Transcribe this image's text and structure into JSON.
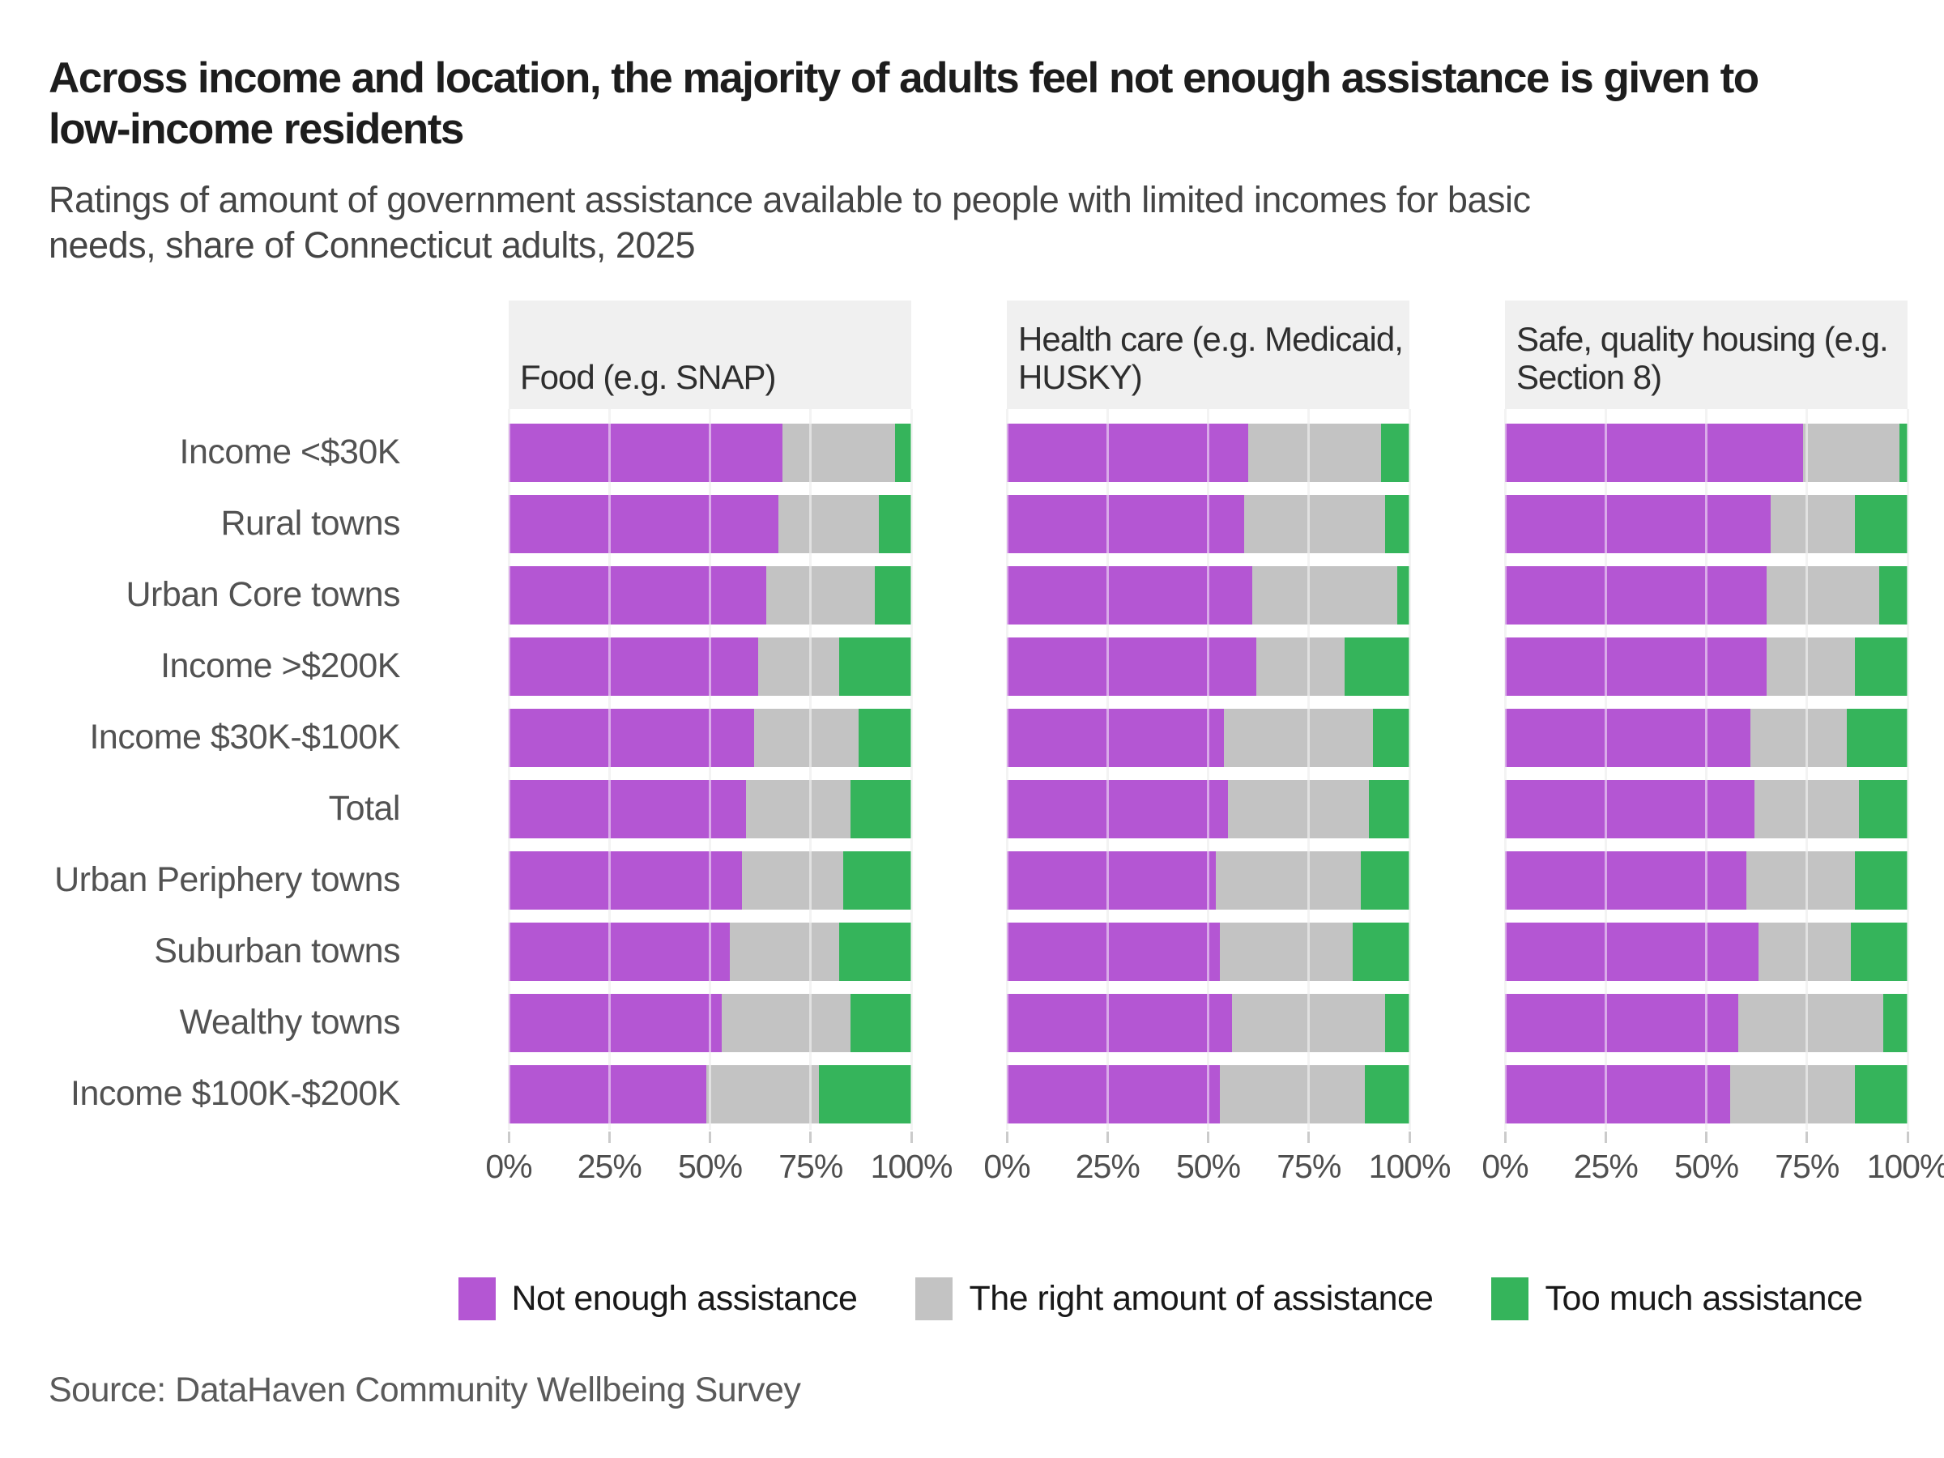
{
  "title": {
    "full": "Across income and location, the majority of adults feel not enough assistance is given to low-income residents",
    "lines": [
      "Across income and location, the majority of adults feel not enough assistance is given to",
      "low-income residents"
    ]
  },
  "subtitle": {
    "full": "Ratings of amount of government assistance available to people with limited incomes for basic needs, share of Connecticut adults, 2025",
    "lines": [
      "Ratings of amount of government assistance available to people with limited incomes for basic",
      "needs, share of Connecticut adults, 2025"
    ]
  },
  "source": "Source: DataHaven Community Wellbeing Survey",
  "colors": {
    "not_enough": "#b456d3",
    "right_amount": "#c3c3c3",
    "too_much": "#35b45b",
    "panel_header_bg": "#f0f0f0",
    "gridline": "#e7e7e7"
  },
  "legend": [
    {
      "label": "Not enough assistance",
      "color": "#b456d3"
    },
    {
      "label": "The right amount of assistance",
      "color": "#c3c3c3"
    },
    {
      "label": "Too much assistance",
      "color": "#35b45b"
    }
  ],
  "chart_data": {
    "type": "bar",
    "orientation": "horizontal",
    "stacked": true,
    "unit": "percent",
    "xlim": [
      0,
      100
    ],
    "x_ticks": [
      "0%",
      "25%",
      "50%",
      "75%",
      "100%"
    ],
    "x_tick_values": [
      0,
      25,
      50,
      75,
      100
    ],
    "grid": true,
    "legend_position": "bottom",
    "categories": [
      "Income <$30K",
      "Rural towns",
      "Urban Core towns",
      "Income >$200K",
      "Income $30K-$100K",
      "Total",
      "Urban Periphery towns",
      "Suburban towns",
      "Wealthy towns",
      "Income $100K-$200K"
    ],
    "series_names": [
      "Not enough assistance",
      "The right amount of assistance",
      "Too much assistance"
    ],
    "panels": [
      {
        "title": "Food (e.g. SNAP)",
        "title_lines": [
          "Food (e.g. SNAP)"
        ],
        "series": [
          {
            "name": "Not enough assistance",
            "values": [
              68,
              67,
              64,
              62,
              61,
              59,
              58,
              55,
              53,
              49
            ]
          },
          {
            "name": "The right amount of assistance",
            "values": [
              28,
              25,
              27,
              20,
              26,
              26,
              25,
              27,
              32,
              28
            ]
          },
          {
            "name": "Too much assistance",
            "values": [
              4,
              8,
              9,
              18,
              13,
              15,
              17,
              18,
              15,
              23
            ]
          }
        ]
      },
      {
        "title": "Health care (e.g. Medicaid, HUSKY)",
        "title_lines": [
          "Health care (e.g. Medicaid,",
          "HUSKY)"
        ],
        "series": [
          {
            "name": "Not enough assistance",
            "values": [
              60,
              59,
              61,
              62,
              54,
              55,
              52,
              53,
              56,
              53
            ]
          },
          {
            "name": "The right amount of assistance",
            "values": [
              33,
              35,
              36,
              22,
              37,
              35,
              36,
              33,
              38,
              36
            ]
          },
          {
            "name": "Too much assistance",
            "values": [
              7,
              6,
              3,
              16,
              9,
              10,
              12,
              14,
              6,
              11
            ]
          }
        ]
      },
      {
        "title": "Safe, quality housing (e.g. Section 8)",
        "title_lines": [
          "Safe, quality housing (e.g.",
          "Section 8)"
        ],
        "series": [
          {
            "name": "Not enough assistance",
            "values": [
              74,
              66,
              65,
              65,
              61,
              62,
              60,
              63,
              58,
              56
            ]
          },
          {
            "name": "The right amount of assistance",
            "values": [
              24,
              21,
              28,
              22,
              24,
              26,
              27,
              23,
              36,
              31
            ]
          },
          {
            "name": "Too much assistance",
            "values": [
              2,
              13,
              7,
              13,
              15,
              12,
              13,
              14,
              6,
              13
            ]
          }
        ]
      }
    ]
  }
}
